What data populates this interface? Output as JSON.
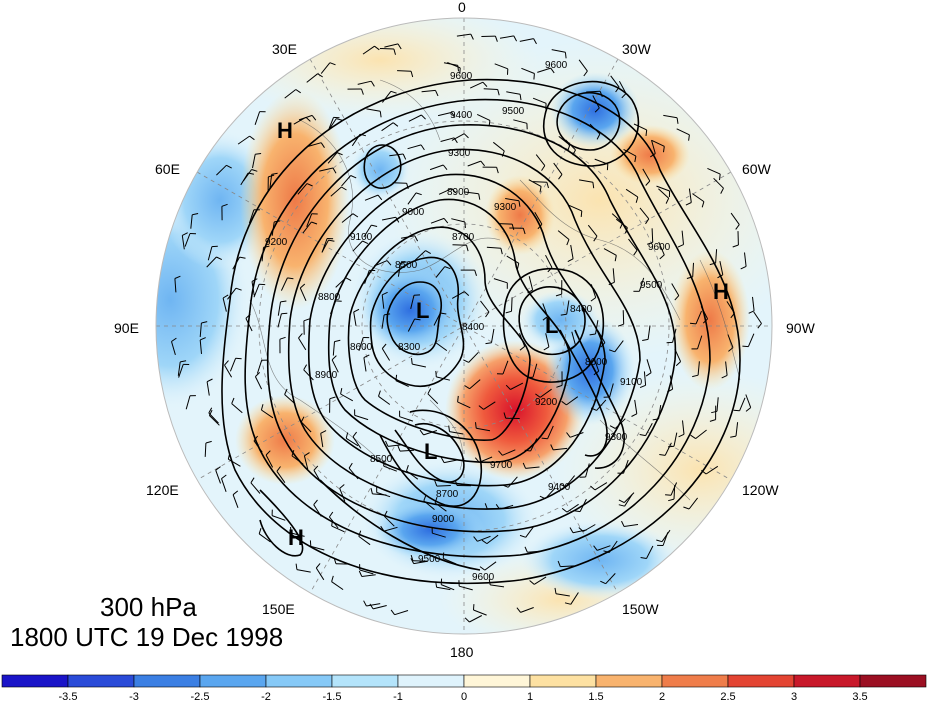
{
  "title": {
    "level": "300 hPa",
    "time": "1800 UTC 19 Dec 1998"
  },
  "longitude_labels": [
    "0",
    "30W",
    "60W",
    "90W",
    "120W",
    "150W",
    "180",
    "150E",
    "120E",
    "90E",
    "60E",
    "30E"
  ],
  "pressure_centers": [
    {
      "label": "H",
      "lon_hint": "45E"
    },
    {
      "label": "H",
      "lon_hint": "85W"
    },
    {
      "label": "H",
      "lon_hint": "135E"
    },
    {
      "label": "L",
      "lon_hint": "pole-near-80E"
    },
    {
      "label": "L",
      "lon_hint": "pole-near-100W"
    },
    {
      "label": "L",
      "lon_hint": "165E"
    }
  ],
  "contour_labels": [
    "9600",
    "9600",
    "9500",
    "9400",
    "9300",
    "9300",
    "9200",
    "9100",
    "9000",
    "8900",
    "8800",
    "8700",
    "8600",
    "8500",
    "8400",
    "8300",
    "8400",
    "8600",
    "9700",
    "9200",
    "9400",
    "9500",
    "9600",
    "9300",
    "9100",
    "8900",
    "8500",
    "8700",
    "9000",
    "9500",
    "9600"
  ],
  "colorbar": {
    "ticks": [
      "-3.5",
      "-3",
      "-2.5",
      "-2",
      "-1.5",
      "-1",
      "0",
      "1",
      "1.5",
      "2",
      "2.5",
      "3",
      "3.5"
    ],
    "colors": [
      "#1a14c8",
      "#2a4bd8",
      "#3b7fe3",
      "#5aa6ef",
      "#86c9f7",
      "#b4e4fb",
      "#dff3fc",
      "#fff6d8",
      "#fde1a2",
      "#f8b36e",
      "#ef7d4a",
      "#e34432",
      "#c8182a",
      "#9b0f22"
    ]
  }
}
